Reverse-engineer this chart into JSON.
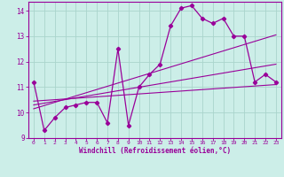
{
  "xlabel": "Windchill (Refroidissement éolien,°C)",
  "background_color": "#cceee8",
  "grid_color": "#aad4cc",
  "line_color": "#990099",
  "xlim": [
    -0.5,
    23.5
  ],
  "ylim": [
    9.0,
    14.35
  ],
  "xticks": [
    0,
    1,
    2,
    3,
    4,
    5,
    6,
    7,
    8,
    9,
    10,
    11,
    12,
    13,
    14,
    15,
    16,
    17,
    18,
    19,
    20,
    21,
    22,
    23
  ],
  "yticks": [
    9,
    10,
    11,
    12,
    13,
    14
  ],
  "main_x": [
    0,
    1,
    2,
    3,
    4,
    5,
    6,
    7,
    8,
    9,
    10,
    11,
    12,
    13,
    14,
    15,
    16,
    17,
    18,
    19,
    20,
    21,
    22,
    23
  ],
  "main_y": [
    11.2,
    9.3,
    9.8,
    10.2,
    10.3,
    10.4,
    10.4,
    9.6,
    12.5,
    9.5,
    11.0,
    11.5,
    11.9,
    13.4,
    14.1,
    14.2,
    13.7,
    13.5,
    13.7,
    13.0,
    13.0,
    11.2,
    11.5,
    11.2
  ],
  "line1_x": [
    0,
    23
  ],
  "line1_y": [
    10.45,
    11.1
  ],
  "line2_x": [
    0,
    23
  ],
  "line2_y": [
    10.3,
    11.9
  ],
  "line3_x": [
    0,
    23
  ],
  "line3_y": [
    10.15,
    13.05
  ]
}
